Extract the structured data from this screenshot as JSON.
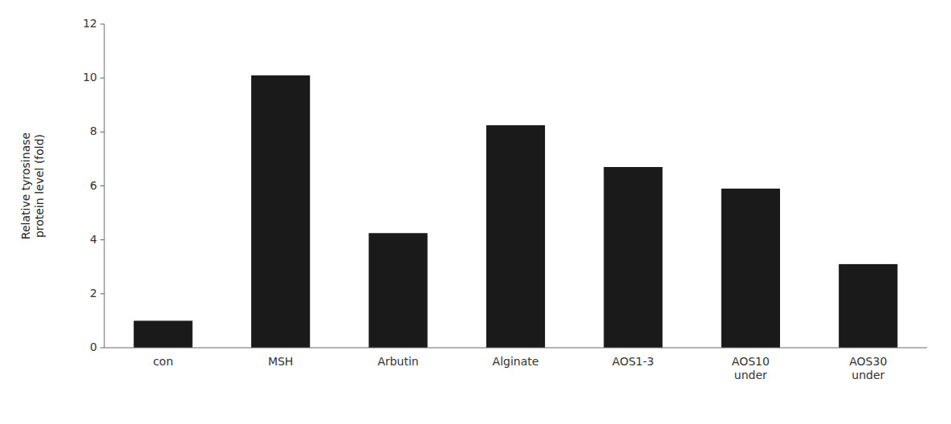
{
  "chart_data": {
    "type": "bar",
    "categories": [
      "con",
      "MSH",
      "Arbutin",
      "Alginate",
      "AOS1-3",
      "AOS10\nunder",
      "AOS30\nunder"
    ],
    "values": [
      1.0,
      10.1,
      4.25,
      8.25,
      6.7,
      5.9,
      3.1
    ],
    "color": "#1a1a1a",
    "ylabel": "Relative tyrosinase\nprotein level (fold)",
    "ylim": [
      0,
      12
    ],
    "yticks": [
      0,
      2,
      4,
      6,
      8,
      10,
      12
    ],
    "grid": false
  }
}
